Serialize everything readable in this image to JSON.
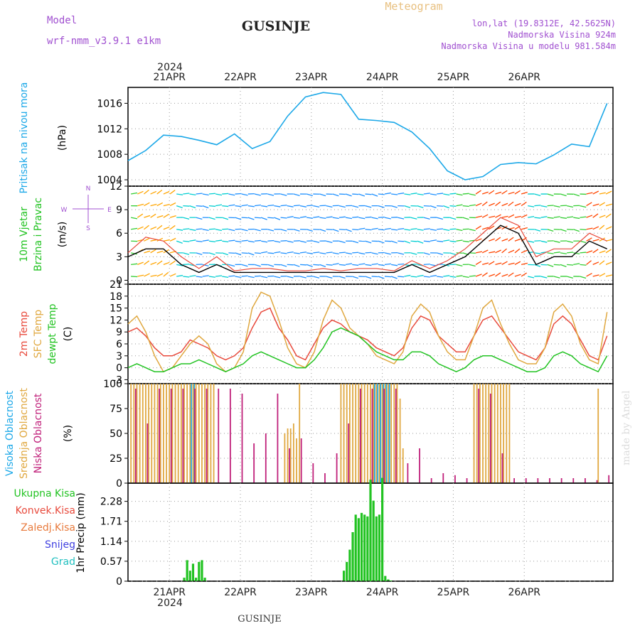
{
  "header": {
    "model_label": "Model",
    "model_name": "wrf-nmm_v3.9.1  e1km",
    "station": "GUSINJE",
    "product": "Meteogram",
    "lonlat": "lon,lat (19.8312E, 42.5625N)",
    "elevation": "Nadmorska Visina 924m",
    "model_elevation": "Nadmorska Visina u modelu 981.584m",
    "footer_station": "GUSINJE",
    "watermark": "made by Angel"
  },
  "colors": {
    "pressure": "#1ca8e8",
    "temp2m": "#e84a3c",
    "sfc": "#e0a840",
    "dew": "#22c322",
    "high_cloud": "#1ca8e8",
    "mid_cloud": "#e0a840",
    "low_cloud": "#c0207a",
    "total_precip": "#22c322",
    "wind_speed": "#000000",
    "wind_gust": "#e84a3c",
    "title": "#222222",
    "model_text": "#a050d0",
    "product_text": "#e8c080"
  },
  "time_axis": {
    "year": "2024",
    "days": [
      "21APR",
      "22APR",
      "23APR",
      "24APR",
      "25APR",
      "26APR"
    ]
  },
  "chart_data": [
    {
      "type": "line",
      "id": "pressure",
      "ylabel_lines": [
        "Pritisak na nivou mora",
        "(hPa)"
      ],
      "ylim": [
        1003,
        1018.5
      ],
      "yticks": [
        1004,
        1008,
        1012,
        1016
      ],
      "x_hours": [
        0,
        6,
        12,
        18,
        24,
        30,
        36,
        42,
        48,
        54,
        60,
        66,
        72,
        78,
        84,
        90,
        96,
        102,
        108,
        114,
        120,
        126,
        132,
        138,
        144,
        150,
        156,
        162
      ],
      "values": [
        1007,
        1008.6,
        1011,
        1010.8,
        1010.2,
        1009.5,
        1011.2,
        1008.9,
        1010,
        1014,
        1017,
        1017.7,
        1017.4,
        1013.5,
        1013.3,
        1013,
        1011.5,
        1008.9,
        1005.4,
        1004,
        1004.5,
        1006.4,
        1006.7,
        1006.5,
        1007.9,
        1009.6,
        1009.2,
        1016
      ]
    },
    {
      "type": "wind",
      "id": "wind",
      "ylabel_lines": [
        "10m Vjetar",
        "Brzina i Pravac",
        "(m/s)"
      ],
      "compass": [
        "N",
        "W",
        "E",
        "S"
      ],
      "ylim": [
        -0.5,
        12
      ],
      "yticks": [
        0,
        3,
        6,
        9,
        12
      ],
      "x_hours": [
        0,
        6,
        12,
        18,
        24,
        30,
        36,
        42,
        48,
        54,
        60,
        66,
        72,
        78,
        84,
        90,
        96,
        102,
        108,
        114,
        120,
        126,
        132,
        138,
        144,
        150,
        156,
        162
      ],
      "speed": [
        3,
        4,
        4,
        2,
        1,
        2,
        1,
        1,
        1,
        1,
        1,
        1,
        1,
        1,
        1,
        1,
        2,
        1,
        2,
        3,
        5,
        7,
        6,
        2,
        3,
        3,
        5,
        4
      ],
      "gust": [
        3.5,
        5.5,
        5,
        3,
        1.5,
        3,
        1.2,
        1.5,
        1.5,
        1.2,
        1.2,
        1.5,
        1.2,
        1.5,
        1.5,
        1.2,
        2.5,
        1.5,
        2.5,
        4,
        6,
        8,
        7,
        3,
        4,
        4,
        6,
        5
      ]
    },
    {
      "type": "line",
      "id": "temperature",
      "ylabel_lines": [
        "2m Temp",
        "SFC Temp",
        "dewpt Temp",
        "(C)"
      ],
      "ylim": [
        -4,
        21
      ],
      "yticks": [
        -3,
        0,
        3,
        6,
        9,
        12,
        15,
        18,
        21
      ],
      "x_hours": [
        0,
        3,
        6,
        9,
        12,
        15,
        18,
        21,
        24,
        27,
        30,
        33,
        36,
        39,
        42,
        45,
        48,
        51,
        54,
        57,
        60,
        63,
        66,
        69,
        72,
        75,
        78,
        81,
        84,
        87,
        90,
        93,
        96,
        99,
        102,
        105,
        108,
        111,
        114,
        117,
        120,
        123,
        126,
        129,
        132,
        135,
        138,
        141,
        144,
        147,
        150,
        153,
        156,
        159,
        162
      ],
      "series": [
        {
          "name": "2m Temp",
          "values": [
            9,
            10,
            8,
            5,
            3,
            3,
            4,
            7,
            6,
            5,
            3,
            2,
            3,
            5,
            10,
            14,
            15,
            10,
            7,
            3,
            2,
            6,
            10,
            12,
            11,
            9,
            8,
            7,
            5,
            4,
            3,
            5,
            10,
            13,
            12,
            8,
            6,
            4,
            4,
            8,
            12,
            13,
            10,
            7,
            4,
            3,
            2,
            5,
            11,
            13,
            11,
            7,
            3,
            2,
            8
          ]
        },
        {
          "name": "SFC Temp",
          "values": [
            11,
            13,
            9,
            3,
            -1,
            0,
            3,
            6,
            8,
            6,
            1,
            -1,
            0,
            4,
            15,
            19,
            18,
            12,
            5,
            1,
            0,
            4,
            12,
            17,
            15,
            10,
            8,
            6,
            3,
            2,
            1,
            4,
            13,
            16,
            14,
            8,
            4,
            2,
            2,
            8,
            15,
            17,
            11,
            6,
            2,
            1,
            1,
            5,
            14,
            16,
            13,
            6,
            2,
            1,
            14
          ]
        },
        {
          "name": "dewpt Temp",
          "values": [
            0,
            1,
            0,
            -1,
            -1,
            0,
            1,
            1,
            2,
            1,
            0,
            -1,
            0,
            1,
            3,
            4,
            3,
            2,
            1,
            0,
            0,
            2,
            5,
            9,
            10,
            9,
            8,
            6,
            4,
            3,
            2,
            2,
            4,
            4,
            3,
            1,
            0,
            -1,
            0,
            2,
            3,
            3,
            2,
            1,
            0,
            -1,
            -1,
            0,
            3,
            4,
            3,
            1,
            0,
            -1,
            3
          ]
        }
      ]
    },
    {
      "type": "bar",
      "id": "clouds",
      "ylabel_lines": [
        "Visoka Oblacnost",
        "Srednja Oblacnost",
        "Niska Oblacnost",
        "(%)"
      ],
      "ylim": [
        0,
        100
      ],
      "yticks": [
        0,
        25,
        50,
        75,
        100
      ],
      "series": [
        {
          "name": "Visoka Oblacnost",
          "x_hours": [
            22,
            23,
            84,
            85,
            86,
            87,
            88,
            89
          ],
          "values": [
            100,
            100,
            100,
            100,
            100,
            100,
            100,
            100
          ]
        },
        {
          "name": "Srednja Oblacnost",
          "x_hours": [
            1,
            2,
            3,
            4,
            5,
            6,
            7,
            8,
            9,
            10,
            11,
            12,
            13,
            14,
            15,
            16,
            17,
            18,
            19,
            20,
            21,
            22,
            23,
            24,
            25,
            26,
            27,
            28,
            29,
            53,
            54,
            55,
            56,
            57,
            58,
            72,
            73,
            74,
            75,
            76,
            77,
            78,
            79,
            80,
            81,
            82,
            83,
            84,
            85,
            86,
            87,
            88,
            89,
            90,
            91,
            92,
            93,
            117,
            118,
            119,
            120,
            121,
            122,
            123,
            124,
            125,
            126,
            127,
            128,
            129,
            159
          ],
          "values": [
            100,
            100,
            100,
            100,
            100,
            100,
            100,
            100,
            100,
            100,
            100,
            100,
            100,
            100,
            100,
            100,
            100,
            100,
            100,
            100,
            100,
            100,
            100,
            100,
            100,
            100,
            100,
            100,
            100,
            50,
            55,
            55,
            60,
            45,
            100,
            100,
            100,
            100,
            100,
            100,
            100,
            100,
            100,
            100,
            100,
            100,
            100,
            100,
            100,
            100,
            100,
            100,
            100,
            100,
            100,
            85,
            35,
            100,
            100,
            100,
            100,
            100,
            100,
            100,
            100,
            100,
            100,
            100,
            100,
            100,
            95
          ]
        },
        {
          "name": "Niska Oblacnost",
          "x_hours": [
            2,
            6,
            10,
            14,
            18,
            22,
            26,
            30,
            34,
            38,
            42,
            46,
            50,
            54,
            58,
            62,
            66,
            70,
            74,
            78,
            82,
            86,
            90,
            94,
            98,
            102,
            106,
            110,
            114,
            118,
            122,
            126,
            130,
            134,
            138,
            142,
            146,
            150,
            154,
            158,
            162
          ],
          "values": [
            95,
            60,
            95,
            95,
            95,
            95,
            95,
            95,
            95,
            90,
            40,
            50,
            90,
            35,
            45,
            20,
            10,
            30,
            60,
            95,
            95,
            95,
            95,
            20,
            35,
            5,
            10,
            8,
            5,
            95,
            90,
            30,
            5,
            5,
            5,
            5,
            5,
            5,
            5,
            3,
            8
          ]
        }
      ]
    },
    {
      "type": "bar",
      "id": "precip",
      "ylabel_lines": [
        "1hr Precip (mm)"
      ],
      "legend": [
        "Ukupna Kisa",
        "Konvek.Kisa",
        "Zaledj.Kisa",
        "Snijeg",
        "Grad"
      ],
      "legend_colors": [
        "#22c322",
        "#e84a3c",
        "#e87a3c",
        "#4040e0",
        "#22c0c0"
      ],
      "ylim": [
        0,
        2.8
      ],
      "yticks": [
        0,
        0.57,
        1.14,
        1.71,
        2.28
      ],
      "series": [
        {
          "name": "Ukupna Kisa",
          "x_hours": [
            19,
            20,
            21,
            22,
            23,
            24,
            25,
            26,
            73,
            74,
            75,
            76,
            77,
            78,
            79,
            80,
            81,
            82,
            83,
            84,
            85,
            86,
            87,
            88,
            89
          ],
          "values": [
            0.1,
            0.6,
            0.3,
            0.5,
            0.1,
            0.55,
            0.6,
            0.1,
            0.3,
            0.55,
            0.9,
            1.4,
            1.9,
            1.8,
            1.95,
            1.9,
            1.85,
            2.9,
            2.3,
            1.85,
            1.9,
            2.95,
            0.15,
            0.05,
            0.02
          ]
        }
      ]
    }
  ]
}
